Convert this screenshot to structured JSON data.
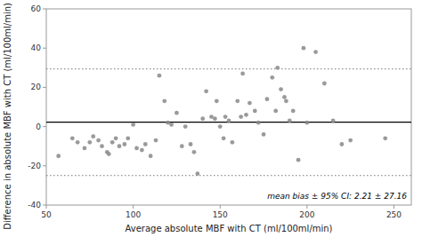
{
  "chart_data": {
    "type": "scatter",
    "xlabel": "Average absolute MBF with CT (ml/100ml/min)",
    "ylabel": "Difference in absolute MBF with CT (ml/100ml/min)",
    "annotation": "mean bias ± 95% CI: 2.21 ± 27.16",
    "x": [
      57,
      65,
      68,
      72,
      75,
      77,
      80,
      82,
      85,
      86,
      88,
      90,
      92,
      95,
      97,
      100,
      102,
      105,
      107,
      110,
      113,
      115,
      118,
      120,
      122,
      125,
      128,
      130,
      133,
      135,
      137,
      140,
      142,
      145,
      147,
      148,
      150,
      152,
      153,
      155,
      157,
      160,
      162,
      163,
      165,
      167,
      170,
      172,
      175,
      177,
      180,
      182,
      183,
      185,
      187,
      188,
      190,
      192,
      195,
      198,
      200,
      205,
      210,
      215,
      220,
      225,
      245
    ],
    "y": [
      -15,
      -6,
      -8,
      -11,
      -8,
      -5,
      -7,
      -10,
      -13,
      -14,
      -8,
      -6,
      -10,
      -9,
      -6,
      1,
      -11,
      -12,
      -9,
      -15,
      -7,
      26,
      13,
      2,
      1,
      7,
      -10,
      0,
      -9,
      -13,
      -24,
      4,
      18,
      5,
      4,
      13,
      0,
      -6,
      5,
      3,
      -8,
      13,
      5,
      27,
      6,
      12,
      8,
      2,
      -4,
      14,
      25,
      8,
      30,
      19,
      15,
      13,
      3,
      8,
      -17,
      40,
      2,
      38,
      22,
      3,
      -9,
      -7,
      -6
    ],
    "color": "#888888",
    "hlines": [
      {
        "value": 2.21,
        "color": "#000000",
        "line_style": "solid"
      },
      {
        "value": 29.37,
        "color": "#777777",
        "line_style": "dotted"
      },
      {
        "value": -24.95,
        "color": "#777777",
        "line_style": "dotted"
      }
    ],
    "xlim": [
      50,
      260
    ],
    "ylim": [
      -40,
      60
    ],
    "xticks": [
      50,
      100,
      150,
      200,
      250
    ],
    "yticks": [
      -40,
      -20,
      0,
      20,
      40,
      60
    ],
    "grid": false
  }
}
